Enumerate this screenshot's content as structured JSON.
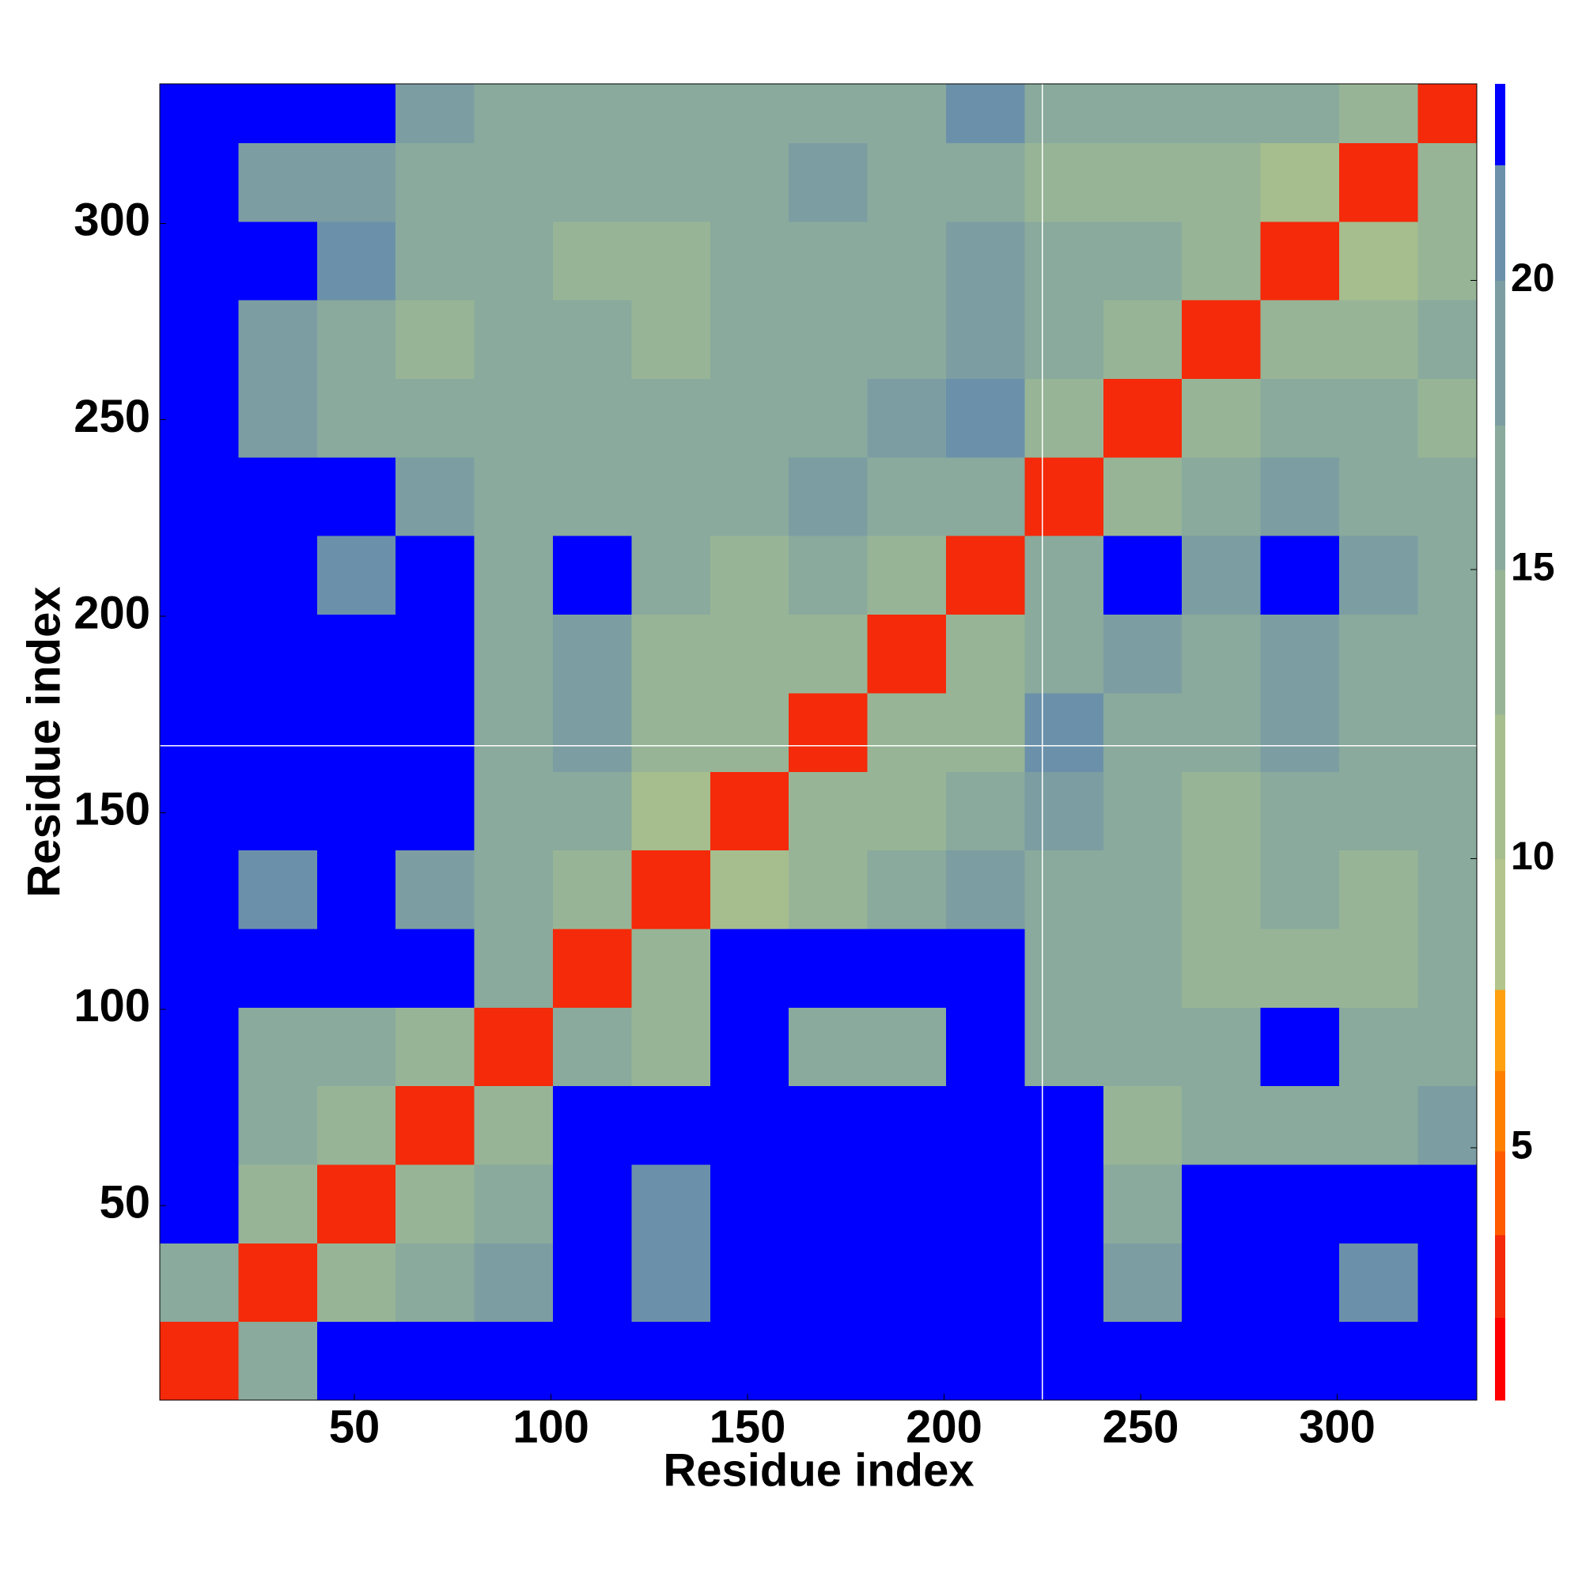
{
  "chart_data": {
    "type": "heatmap",
    "xlabel": "Residue index",
    "ylabel": "Residue index",
    "bins": [
      0.5,
      20.5,
      40.5,
      60.5,
      80.5,
      100.5,
      120.5,
      140.5,
      160.5,
      180.5,
      200.5,
      220.5,
      240.5,
      260.5,
      280.5,
      300.5,
      320.5,
      335.5
    ],
    "values": [
      [
        3,
        16,
        23,
        23,
        23,
        23,
        23,
        23,
        23,
        23,
        23,
        23,
        23,
        23,
        23,
        23,
        23
      ],
      [
        16,
        3,
        14,
        17,
        18,
        23,
        21,
        23,
        23,
        23,
        23,
        23,
        19,
        23,
        23,
        20,
        23
      ],
      [
        23,
        14,
        3,
        13,
        16,
        23,
        21,
        23,
        23,
        23,
        23,
        23,
        16,
        23,
        23,
        23,
        23
      ],
      [
        23,
        16,
        13,
        3,
        13,
        23,
        22,
        23,
        23,
        23,
        23,
        23,
        14,
        16,
        17,
        16,
        18
      ],
      [
        23,
        15,
        17,
        13,
        3,
        16,
        14,
        23,
        16,
        17,
        23,
        15,
        15,
        16,
        23,
        17,
        17
      ],
      [
        23,
        23,
        23,
        23,
        16,
        3,
        13,
        23,
        23,
        23,
        23,
        15,
        17,
        14,
        14,
        14,
        16
      ],
      [
        23,
        20,
        23,
        19,
        15,
        13,
        3,
        12,
        13,
        15,
        18,
        16,
        16,
        14,
        15,
        14,
        17
      ],
      [
        23,
        23,
        23,
        23,
        17,
        17,
        12,
        3,
        13,
        14,
        15,
        18,
        15,
        14,
        17,
        15,
        16
      ],
      [
        23,
        23,
        23,
        23,
        16,
        19,
        13,
        13,
        3,
        13,
        14,
        20,
        17,
        15,
        19,
        17,
        16
      ],
      [
        23,
        23,
        23,
        23,
        15,
        18,
        14,
        14,
        13,
        3,
        13,
        17,
        18,
        16,
        18,
        16,
        15
      ],
      [
        23,
        23,
        21,
        23,
        17,
        23,
        15,
        14,
        15,
        13,
        3,
        15,
        23,
        18,
        23,
        18,
        17
      ],
      [
        23,
        23,
        23,
        19,
        17,
        15,
        16,
        17,
        18,
        17,
        15,
        3,
        13,
        17,
        19,
        17,
        15
      ],
      [
        23,
        19,
        17,
        15,
        16,
        15,
        16,
        15,
        16,
        18,
        20,
        13,
        3,
        13,
        15,
        15,
        14
      ],
      [
        23,
        18,
        16,
        14,
        15,
        17,
        14,
        15,
        16,
        16,
        18,
        15,
        13,
        3,
        13,
        14,
        15
      ],
      [
        23,
        23,
        20,
        16,
        17,
        14,
        14,
        15,
        16,
        17,
        18,
        15,
        15,
        13,
        3,
        12,
        14
      ],
      [
        23,
        19,
        19,
        16,
        15,
        16,
        15,
        17,
        18,
        17,
        17,
        14,
        14,
        14,
        12,
        3,
        13
      ],
      [
        23,
        23,
        23,
        18,
        16,
        16,
        15,
        16,
        17,
        17,
        21,
        15,
        15,
        16,
        15,
        13,
        3
      ]
    ],
    "xlim": [
      0.5,
      335.5
    ],
    "ylim": [
      0.5,
      335.5
    ],
    "xticks": [
      50,
      100,
      150,
      200,
      250,
      300
    ],
    "yticks": [
      50,
      100,
      150,
      200,
      250,
      300
    ],
    "vlines": [
      225
    ],
    "hlines": [
      167
    ],
    "colorbar_bounds": [
      0.64,
      2.07,
      3.5,
      4.95,
      6.34,
      7.74,
      10,
      12.5,
      15,
      17.5,
      20,
      22,
      23.4
    ],
    "colorbar_colors": [
      "#ff0000",
      "#f42a0a",
      "#ff5a00",
      "#ff8000",
      "#ffa010",
      "#b3c48c",
      "#a6bd8e",
      "#97b596",
      "#89aa9c",
      "#7c9ea2",
      "#6b91aa",
      "#0000ff"
    ],
    "colorbar_ticks": [
      5,
      10,
      15,
      20
    ]
  }
}
